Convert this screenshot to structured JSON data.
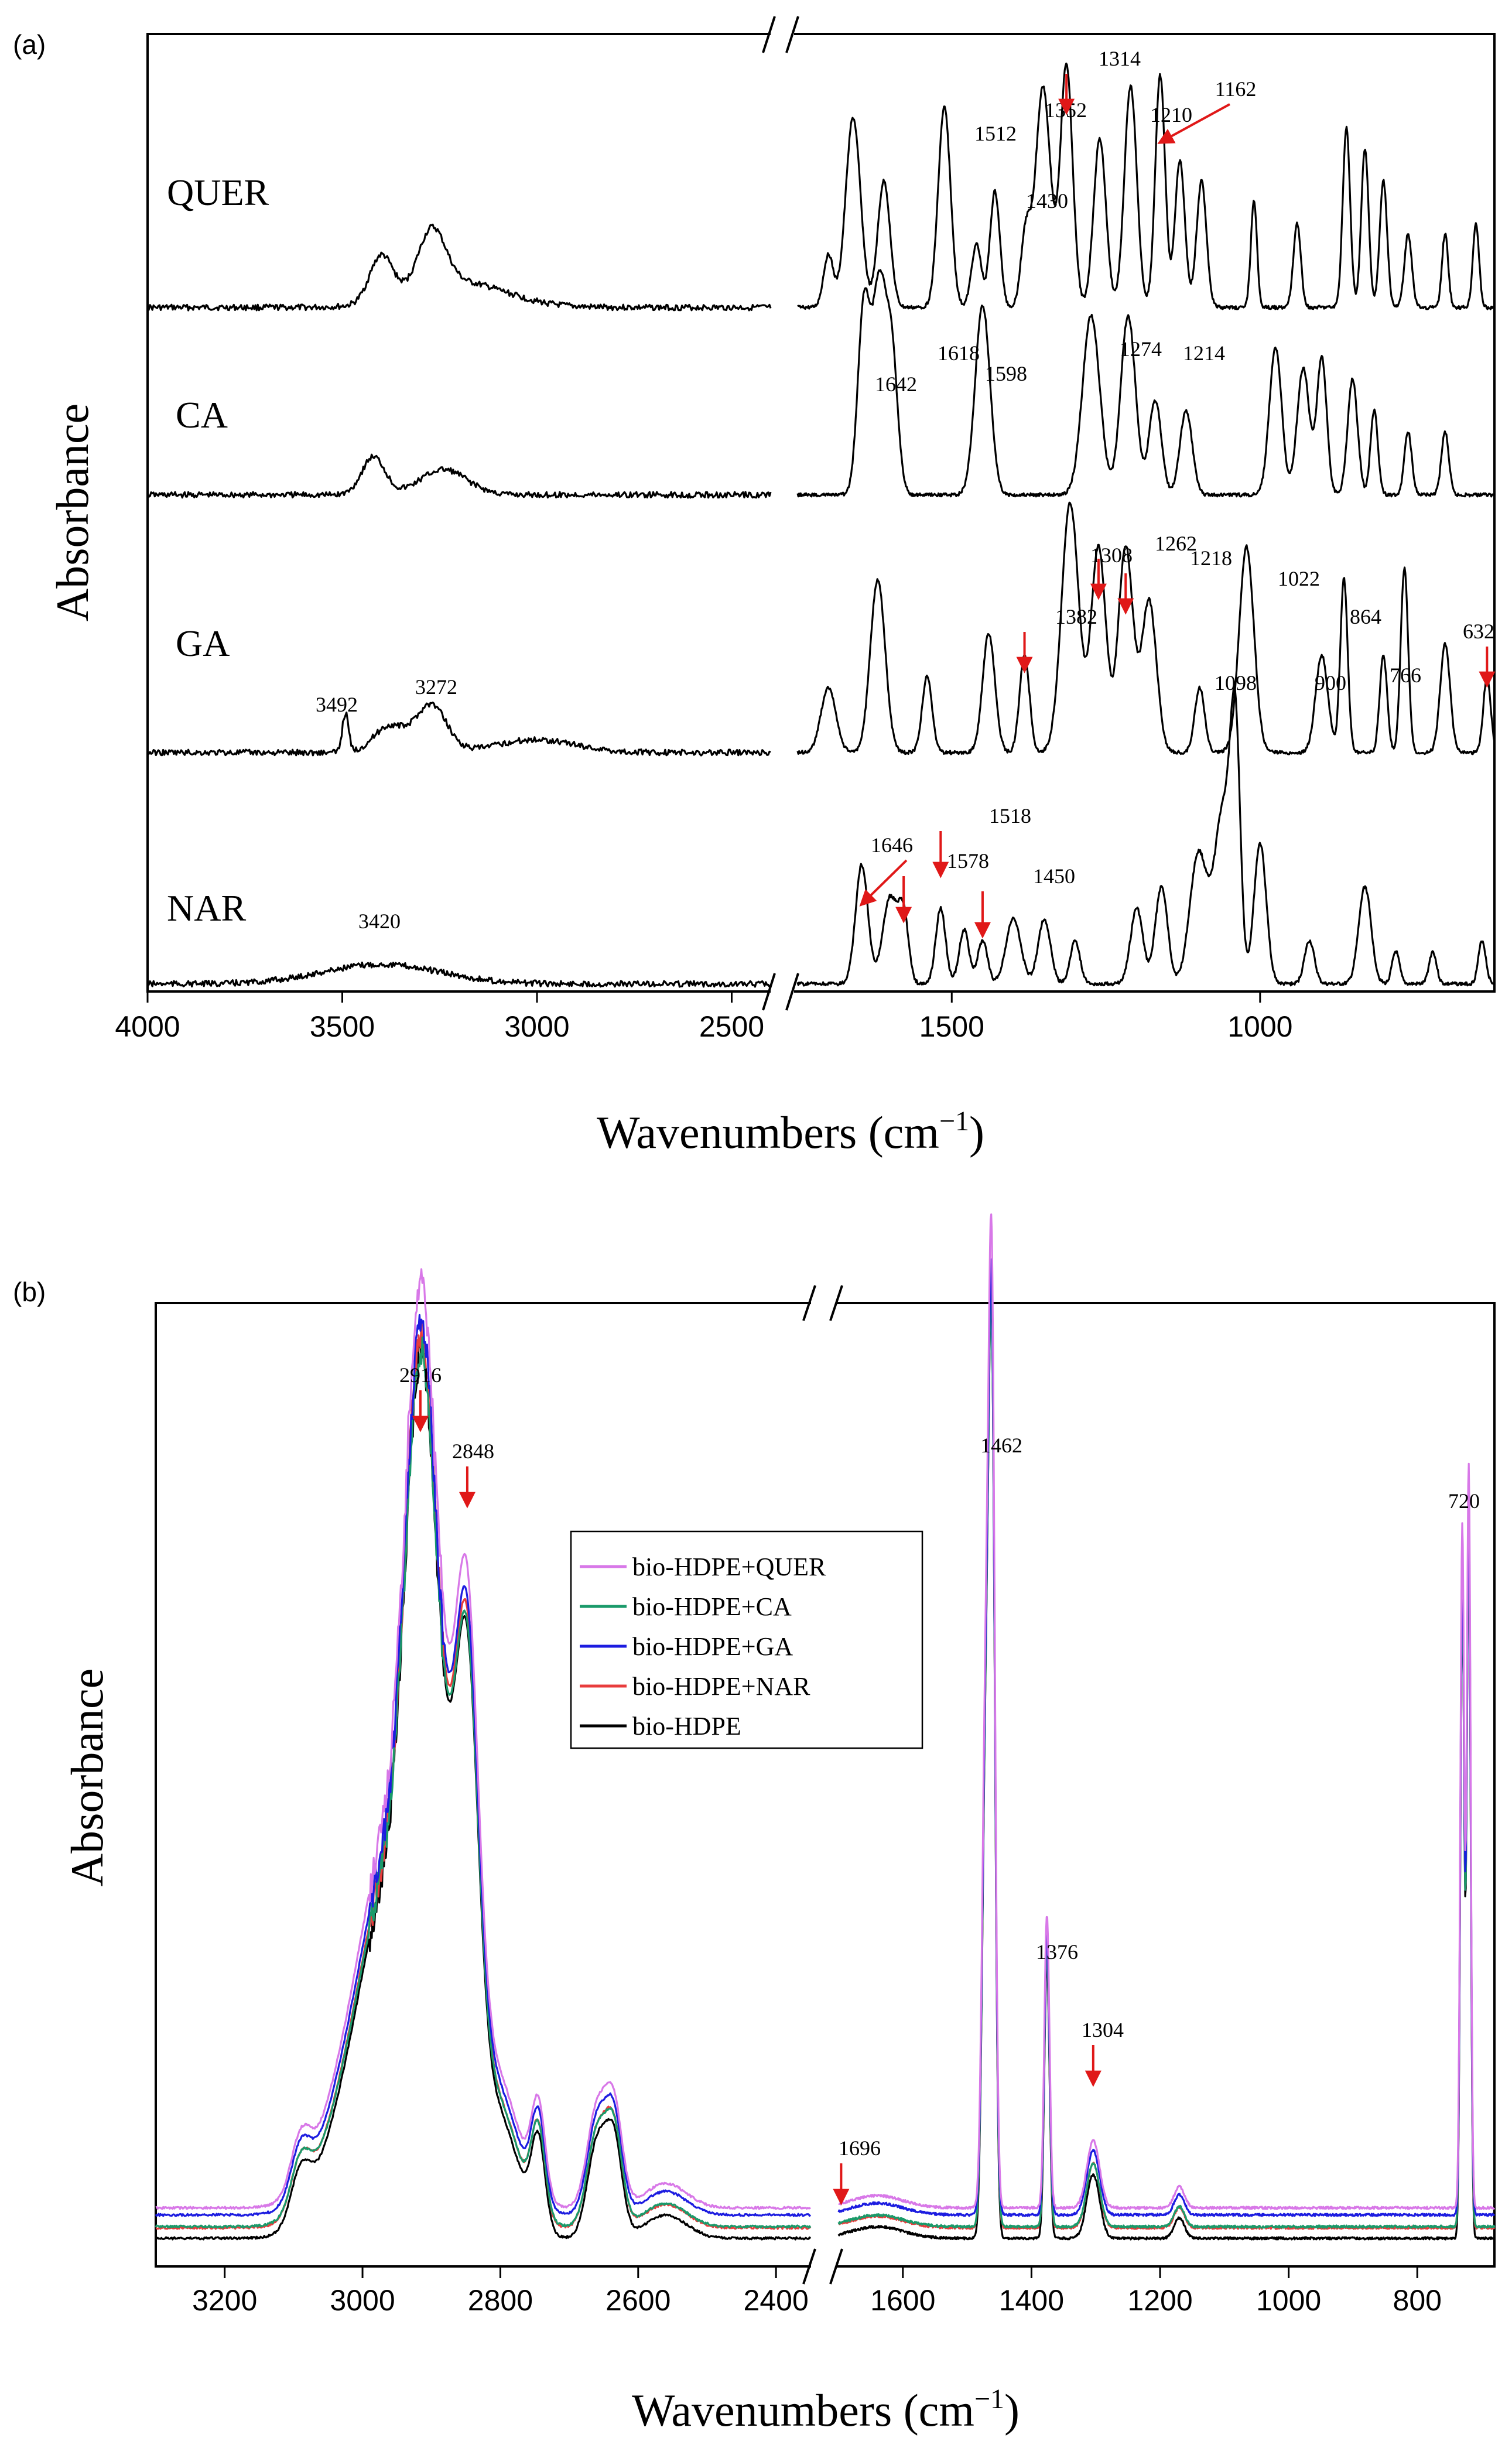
{
  "chart_data": [
    {
      "panel": "(a)",
      "type": "line",
      "ylabel": "Absorbance",
      "xlabel": "Wavenumbers (cm",
      "xlabel_sup": "−1",
      "xlabel_close": ")",
      "x_ticks": [
        "4000",
        "3500",
        "3000",
        "2500",
        "1500",
        "1000"
      ],
      "x_ranges": [
        [
          4000,
          2400
        ],
        [
          1750,
          620
        ]
      ],
      "series": [
        {
          "name": "QUER",
          "annotations": [
            {
              "x": 1512,
              "label": "1512",
              "arrow": false
            },
            {
              "x": 1430,
              "label": "1430",
              "arrow": false
            },
            {
              "x": 1352,
              "label": "1352",
              "arrow": false
            },
            {
              "x": 1314,
              "label": "1314",
              "arrow": true
            },
            {
              "x": 1210,
              "label": "1210",
              "arrow": false
            },
            {
              "x": 1162,
              "label": "1162",
              "arrow": true
            }
          ]
        },
        {
          "name": "CA",
          "annotations": [
            {
              "x": 1642,
              "label": "1642",
              "arrow": false
            },
            {
              "x": 1618,
              "label": "1618",
              "arrow": false
            },
            {
              "x": 1598,
              "label": "1598",
              "arrow": false
            },
            {
              "x": 1274,
              "label": "1274",
              "arrow": false
            },
            {
              "x": 1214,
              "label": "1214",
              "arrow": false
            }
          ]
        },
        {
          "name": "GA",
          "annotations": [
            {
              "x": 3492,
              "label": "3492",
              "arrow": false
            },
            {
              "x": 3272,
              "label": "3272",
              "arrow": false
            },
            {
              "x": 1382,
              "label": "1382",
              "arrow": true
            },
            {
              "x": 1308,
              "label": "1308",
              "arrow": false
            },
            {
              "x": 1262,
              "label": "1262",
              "arrow": true
            },
            {
              "x": 1218,
              "label": "1218",
              "arrow": true
            },
            {
              "x": 1098,
              "label": "1098",
              "arrow": false
            },
            {
              "x": 1022,
              "label": "1022",
              "arrow": false
            },
            {
              "x": 900,
              "label": "900",
              "arrow": false
            },
            {
              "x": 864,
              "label": "864",
              "arrow": false
            },
            {
              "x": 766,
              "label": "766",
              "arrow": false
            },
            {
              "x": 632,
              "label": "632",
              "arrow": true
            }
          ]
        },
        {
          "name": "NAR",
          "annotations": [
            {
              "x": 3420,
              "label": "3420",
              "arrow": false
            },
            {
              "x": 1646,
              "label": "1646",
              "arrow": true
            },
            {
              "x": 1578,
              "label": "1578",
              "arrow": true
            },
            {
              "x": 1518,
              "label": "1518",
              "arrow": true
            },
            {
              "x": 1450,
              "label": "1450",
              "arrow": true
            }
          ]
        }
      ]
    },
    {
      "panel": "(b)",
      "type": "line",
      "ylabel": "Absorbance",
      "xlabel": "Wavenumbers (cm",
      "xlabel_sup": "−1",
      "xlabel_close": ")",
      "x_ticks": [
        "3200",
        "3000",
        "2800",
        "2600",
        "2400",
        "1600",
        "1400",
        "1200",
        "1000",
        "800"
      ],
      "x_ranges": [
        [
          3300,
          2350
        ],
        [
          1700,
          680
        ]
      ],
      "legend_position": "center",
      "series": [
        {
          "name": "bio-HDPE+QUER",
          "color": "#d878e8"
        },
        {
          "name": "bio-HDPE+CA",
          "color": "#1a9a6a"
        },
        {
          "name": "bio-HDPE+GA",
          "color": "#1c1ce0"
        },
        {
          "name": "bio-HDPE+NAR",
          "color": "#e83c3c"
        },
        {
          "name": "bio-HDPE",
          "color": "#000000"
        }
      ],
      "annotations": [
        {
          "x": 2916,
          "label": "2916",
          "arrow": true
        },
        {
          "x": 2848,
          "label": "2848",
          "arrow": true
        },
        {
          "x": 1696,
          "label": "1696",
          "arrow": true
        },
        {
          "x": 1462,
          "label": "1462",
          "arrow": false
        },
        {
          "x": 1376,
          "label": "1376",
          "arrow": false
        },
        {
          "x": 1304,
          "label": "1304",
          "arrow": true
        },
        {
          "x": 720,
          "label": "720",
          "arrow": false
        }
      ]
    }
  ]
}
